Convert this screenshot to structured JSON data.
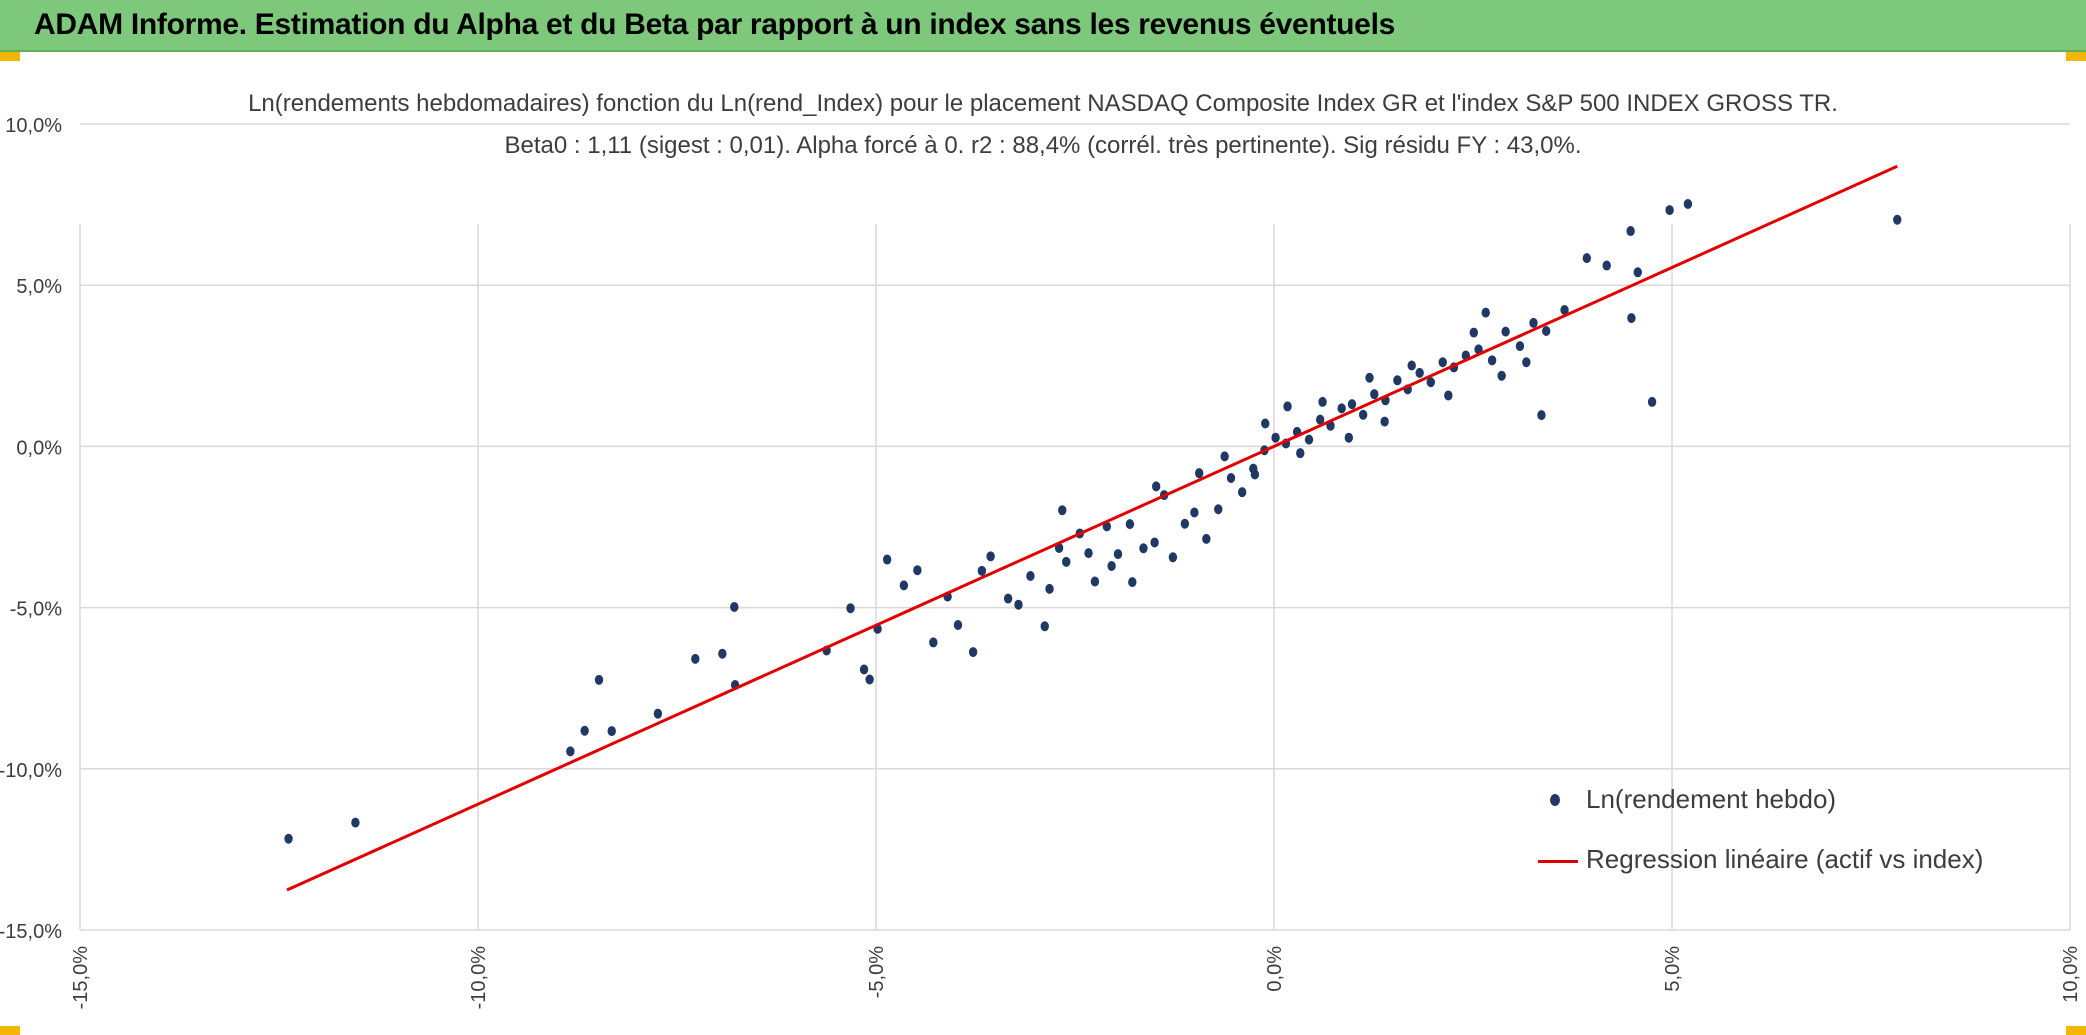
{
  "banner": {
    "title": "ADAM Informe. Estimation du Alpha et du Beta par rapport à un index sans les revenus éventuels",
    "color": "#7dc87b"
  },
  "chart_data": {
    "type": "scatter",
    "title": "Ln(rendements hebdomadaires) fonction du Ln(rend_Index) pour le placement NASDAQ Composite Index GR et l'index S&P 500 INDEX GROSS TR.",
    "subtitle": "Beta0 : 1,11 (sigest : 0,01). Alpha forcé à 0. r2 : 88,4% (corrél. très pertinente). Sig résidu FY : 43,0%.",
    "xlabel": "",
    "ylabel": "",
    "xlim": [
      -0.15,
      0.1
    ],
    "ylim": [
      -0.15,
      0.1
    ],
    "x_ticks": [
      "-15,0%",
      "-10,0%",
      "-5,0%",
      "0,0%",
      "5,0%",
      "10,0%"
    ],
    "y_ticks": [
      "10,0%",
      "5,0%",
      "0,0%",
      "-5,0%",
      "-10,0%",
      "-15,0%"
    ],
    "grid": true,
    "legend_position": "bottom-right",
    "beta": 1.11,
    "alpha": 0,
    "series": [
      {
        "name": "Ln(rendement hebdo)",
        "kind": "scatter",
        "color": "#203864",
        "points": [
          [
            -0.1238,
            -0.1217
          ],
          [
            -0.1154,
            -0.1167
          ],
          [
            -0.0884,
            -0.0946
          ],
          [
            -0.0866,
            -0.0882
          ],
          [
            -0.0848,
            -0.0724
          ],
          [
            -0.0832,
            -0.0883
          ],
          [
            -0.0774,
            -0.0829
          ],
          [
            -0.0727,
            -0.0659
          ],
          [
            -0.0693,
            -0.0643
          ],
          [
            -0.0677,
            -0.074
          ],
          [
            -0.0678,
            -0.0498
          ],
          [
            -0.0562,
            -0.0633
          ],
          [
            -0.0532,
            -0.0502
          ],
          [
            -0.0515,
            -0.0692
          ],
          [
            -0.0508,
            -0.0723
          ],
          [
            -0.0498,
            -0.0566
          ],
          [
            -0.0486,
            -0.0351
          ],
          [
            -0.0465,
            -0.0431
          ],
          [
            -0.0448,
            -0.0384
          ],
          [
            -0.0428,
            -0.0608
          ],
          [
            -0.041,
            -0.0466
          ],
          [
            -0.0397,
            -0.0554
          ],
          [
            -0.0378,
            -0.0638
          ],
          [
            -0.0367,
            -0.0386
          ],
          [
            -0.0356,
            -0.0341
          ],
          [
            -0.0334,
            -0.0472
          ],
          [
            -0.0321,
            -0.0491
          ],
          [
            -0.0306,
            -0.0402
          ],
          [
            -0.0288,
            -0.0558
          ],
          [
            -0.0282,
            -0.0442
          ],
          [
            -0.027,
            -0.0315
          ],
          [
            -0.0261,
            -0.0358
          ],
          [
            -0.0244,
            -0.027
          ],
          [
            -0.0225,
            -0.0419
          ],
          [
            -0.021,
            -0.0248
          ],
          [
            -0.0196,
            -0.0334
          ],
          [
            -0.0178,
            -0.0421
          ],
          [
            -0.0164,
            -0.0316
          ],
          [
            -0.015,
            -0.0298
          ],
          [
            -0.0138,
            -0.0151
          ],
          [
            -0.0127,
            -0.0344
          ],
          [
            -0.0112,
            -0.024
          ],
          [
            -0.01,
            -0.0205
          ],
          [
            -0.0085,
            -0.0287
          ],
          [
            -0.007,
            -0.0195
          ],
          [
            -0.0054,
            -0.0098
          ],
          [
            -0.004,
            -0.0142
          ],
          [
            -0.0026,
            -0.0069
          ],
          [
            -0.0012,
            -0.0012
          ],
          [
            0.0002,
            0.0027
          ],
          [
            0.0015,
            0.0009
          ],
          [
            0.0029,
            0.0045
          ],
          [
            0.0044,
            0.0021
          ],
          [
            0.0058,
            0.0083
          ],
          [
            0.0071,
            0.0064
          ],
          [
            0.0085,
            0.0118
          ],
          [
            0.0098,
            0.0131
          ],
          [
            0.0112,
            0.0098
          ],
          [
            0.0126,
            0.0162
          ],
          [
            0.014,
            0.0143
          ],
          [
            0.0155,
            0.0205
          ],
          [
            0.0168,
            0.0177
          ],
          [
            0.0183,
            0.0228
          ],
          [
            0.0197,
            0.0199
          ],
          [
            0.0212,
            0.0261
          ],
          [
            0.0226,
            0.0245
          ],
          [
            0.0241,
            0.0282
          ],
          [
            0.0257,
            0.0301
          ],
          [
            0.0274,
            0.0267
          ],
          [
            0.0291,
            0.0356
          ],
          [
            0.0309,
            0.0311
          ],
          [
            0.0326,
            0.0383
          ],
          [
            0.0342,
            0.0358
          ],
          [
            0.0365,
            0.0423
          ],
          [
            0.0393,
            0.0584
          ],
          [
            0.0418,
            0.0561
          ],
          [
            0.0448,
            0.0668
          ],
          [
            0.0449,
            0.0398
          ],
          [
            0.0457,
            0.054
          ],
          [
            0.0475,
            0.0138
          ],
          [
            0.0497,
            0.0733
          ],
          [
            0.052,
            0.0752
          ],
          [
            0.0783,
            0.0703
          ],
          [
            -0.0011,
            0.0071
          ],
          [
            -0.0024,
            -0.0087
          ],
          [
            0.0033,
            -0.0021
          ],
          [
            0.0061,
            0.0138
          ],
          [
            0.0094,
            0.0027
          ],
          [
            0.012,
            0.0213
          ],
          [
            -0.0062,
            -0.0031
          ],
          [
            -0.0094,
            -0.0083
          ],
          [
            0.0017,
            0.0124
          ],
          [
            0.0139,
            0.0077
          ],
          [
            0.0173,
            0.0251
          ],
          [
            0.0219,
            0.0158
          ],
          [
            0.0251,
            0.0353
          ],
          [
            0.0286,
            0.0219
          ],
          [
            0.0317,
            0.0261
          ],
          [
            0.0336,
            0.0097
          ],
          [
            0.0266,
            0.0415
          ],
          [
            -0.0148,
            -0.0124
          ],
          [
            -0.0181,
            -0.0241
          ],
          [
            -0.0204,
            -0.0371
          ],
          [
            -0.0233,
            -0.0331
          ],
          [
            -0.0266,
            -0.0198
          ]
        ]
      },
      {
        "name": "Regression linéaire (actif vs index)",
        "kind": "line",
        "color": "#e00000",
        "x": [
          -0.124,
          0.0783
        ],
        "y": [
          -0.1376,
          0.0869
        ]
      }
    ]
  }
}
